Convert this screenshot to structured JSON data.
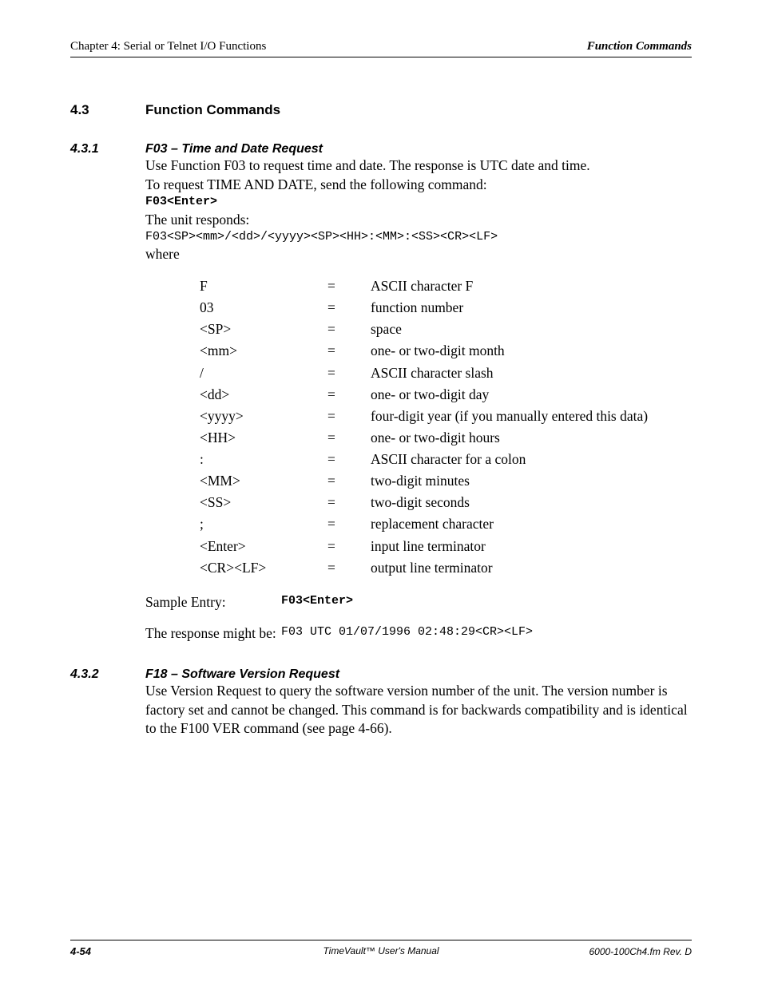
{
  "header": {
    "left": "Chapter 4: Serial or Telnet I/O Functions",
    "right": "Function Commands"
  },
  "section": {
    "num": "4.3",
    "title": "Function Commands"
  },
  "sub1": {
    "num": "4.3.1",
    "title": "F03 – Time and Date Request",
    "p1": "Use Function F03 to request time and date.  The response is UTC date and time.",
    "p2": "To request TIME AND DATE, send the following command:",
    "cmd": "F03<Enter>",
    "p3": "The unit responds:",
    "resp": "F03<SP><mm>/<dd>/<yyyy><SP><HH>:<MM>:<SS><CR><LF>",
    "p4": "where",
    "defs": [
      {
        "sym": "F",
        "desc": "ASCII character F"
      },
      {
        "sym": "03",
        "desc": "function number"
      },
      {
        "sym": "<SP>",
        "desc": "space"
      },
      {
        "sym": "<mm>",
        "desc": "one- or two-digit month"
      },
      {
        "sym": "/",
        "desc": "ASCII character slash"
      },
      {
        "sym": "<dd>",
        "desc": "one- or two-digit day"
      },
      {
        "sym": "<yyyy>",
        "desc": "four-digit year (if you manually entered this data)"
      },
      {
        "sym": "<HH>",
        "desc": "one- or two-digit hours"
      },
      {
        "sym": ":",
        "desc": "ASCII character for a colon"
      },
      {
        "sym": "<MM>",
        "desc": "two-digit minutes"
      },
      {
        "sym": "<SS>",
        "desc": "two-digit seconds"
      },
      {
        "sym": ";",
        "desc": "replacement character"
      },
      {
        "sym": "<Enter>",
        "desc": "input line terminator"
      },
      {
        "sym": "<CR><LF>",
        "desc": "output line terminator"
      }
    ],
    "sample_label": "Sample Entry:",
    "sample_val": "F03<Enter>",
    "resp_label": "The response might be:",
    "resp_val": "F03 UTC 01/07/1996 02:48:29<CR><LF>"
  },
  "sub2": {
    "num": "4.3.2",
    "title": "F18 – Software Version Request",
    "p1": "Use Version Request to query the software version number of the unit.  The version number is factory set and cannot be changed.  This command is for backwards compatibility and is identical to the F100 VER command (see  page 4-66)."
  },
  "footer": {
    "left": "4-54",
    "center": "TimeVault™ User's Manual",
    "right": "6000-100Ch4.fm  Rev. D"
  }
}
